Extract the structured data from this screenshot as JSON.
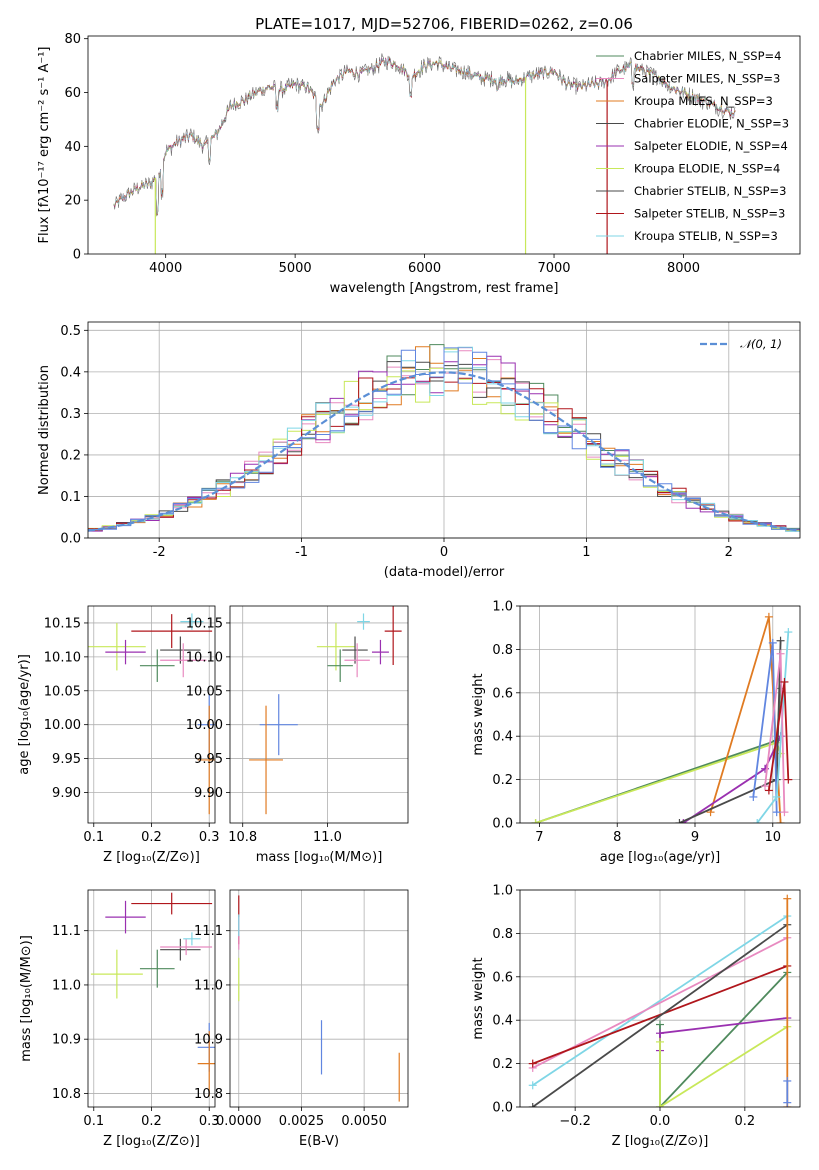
{
  "figure": {
    "title": "PLATE=1017, MJD=52706, FIBERID=0262, z=0.06"
  },
  "colors": {
    "blue": "#6186e0",
    "orange": "#e07b22",
    "green": "#4f8a5d",
    "pink": "#e88ac0",
    "purple": "#9a30b0",
    "yellowgreen": "#c8e85a",
    "darkgray": "#4a4a4a",
    "red": "#b0161c",
    "cyan": "#7fd6e6",
    "spectrum": "#555555",
    "gaussian": "#5b8fd6"
  },
  "chart_data": [
    {
      "id": "spectrum",
      "type": "line",
      "title": "PLATE=1017, MJD=52706, FIBERID=0262, z=0.06",
      "xlabel": "wavelength [Angstrom, rest frame]",
      "ylabel": "Flux [fλ10⁻¹⁷ erg cm⁻² s⁻¹ A⁻¹]",
      "xlim": [
        3400,
        8900
      ],
      "ylim": [
        0,
        81
      ],
      "xticks": [
        4000,
        5000,
        6000,
        7000,
        8000
      ],
      "yticks": [
        0,
        20,
        40,
        60,
        80
      ],
      "grid": false,
      "legend_position": "top-right",
      "legend": [
        "Chabrier MILES, N_SSP=4",
        "Salpeter MILES, N_SSP=3",
        "Kroupa MILES, N_SSP=3",
        "Chabrier ELODIE, N_SSP=3",
        "Salpeter ELODIE, N_SSP=4",
        "Kroupa ELODIE, N_SSP=4",
        "Chabrier STELIB, N_SSP=3",
        "Salpeter STELIB, N_SSP=3",
        "Kroupa STELIB, N_SSP=3"
      ],
      "legend_colors": [
        "green",
        "pink",
        "orange",
        "darkgray",
        "purple",
        "yellowgreen",
        "darkgray",
        "red",
        "cyan"
      ],
      "x": [
        3600,
        3700,
        3800,
        3880,
        3950,
        4000,
        4100,
        4200,
        4300,
        4400,
        4500,
        4600,
        4700,
        4800,
        4900,
        5000,
        5100,
        5200,
        5300,
        5400,
        5500,
        5600,
        5700,
        5800,
        5900,
        6000,
        6100,
        6200,
        6300,
        6400,
        6500,
        6600,
        6700,
        6800,
        6900,
        7000,
        7100,
        7200,
        7300,
        7400,
        7500,
        7600,
        7700,
        7800,
        7900,
        8000,
        8100,
        8200,
        8300,
        8400
      ],
      "y": [
        18,
        22,
        25,
        26,
        30,
        38,
        42,
        44,
        40,
        45,
        55,
        57,
        60,
        62,
        61,
        63,
        62,
        55,
        64,
        68,
        67,
        69,
        72,
        70,
        66,
        70,
        71,
        69,
        68,
        66,
        65,
        65,
        64,
        66,
        67,
        68,
        63,
        62,
        63,
        64,
        68,
        70,
        68,
        66,
        62,
        60,
        58,
        56,
        54,
        52
      ],
      "spikes_to_zero": [
        3920,
        6780,
        7410
      ]
    },
    {
      "id": "residuals",
      "type": "line",
      "xlabel": "(data-model)/error",
      "ylabel": "Normed distribution",
      "xlim": [
        -2.5,
        2.5
      ],
      "ylim": [
        0,
        0.52
      ],
      "xticks": [
        -2,
        -1,
        0,
        1,
        2
      ],
      "yticks": [
        0.0,
        0.1,
        0.2,
        0.3,
        0.4,
        0.5
      ],
      "grid": true,
      "legend_position": "top-right",
      "legend": [
        "𝒩(0, 1)"
      ]
    },
    {
      "id": "age-vs-Z",
      "type": "scatter",
      "xlabel": "Z [log₁₀(Z/Z⊙)]",
      "ylabel": "age  [log₁₀(age/yr)]",
      "xlim": [
        0.09,
        0.31
      ],
      "ylim": [
        9.855,
        10.175
      ],
      "xticks": [
        0.1,
        0.2,
        0.3
      ],
      "yticks": [
        9.9,
        9.95,
        10.0,
        10.05,
        10.1,
        10.15
      ],
      "grid": true,
      "points": [
        {
          "color": "yellowgreen",
          "x": 0.14,
          "y": 10.115,
          "xerr": 0.05,
          "yerr": 0.035
        },
        {
          "color": "purple",
          "x": 0.155,
          "y": 10.107,
          "xerr": 0.035,
          "yerr": 0.018
        },
        {
          "color": "green",
          "x": 0.21,
          "y": 10.087,
          "xerr": 0.03,
          "yerr": 0.024
        },
        {
          "color": "darkgray",
          "x": 0.25,
          "y": 10.11,
          "xerr": 0.035,
          "yerr": 0.02
        },
        {
          "color": "pink",
          "x": 0.255,
          "y": 10.095,
          "xerr": 0.04,
          "yerr": 0.025
        },
        {
          "color": "red",
          "x": 0.235,
          "y": 10.138,
          "xerr": 0.07,
          "yerr": 0.025
        },
        {
          "color": "cyan",
          "x": 0.27,
          "y": 10.152,
          "xerr": 0.02,
          "yerr": 0.012
        },
        {
          "color": "blue",
          "x": 0.3,
          "y": 10.0,
          "xerr": 0.02,
          "yerr": 0.045
        },
        {
          "color": "orange",
          "x": 0.3,
          "y": 9.948,
          "xerr": 0.02,
          "yerr": 0.08
        }
      ]
    },
    {
      "id": "age-vs-mass",
      "type": "scatter",
      "xlabel": "mass [log₁₀(M/M⊙)]",
      "xlim": [
        10.77,
        11.19
      ],
      "ylim": [
        9.855,
        10.175
      ],
      "xticks": [
        10.8,
        11.0
      ],
      "yticks": [
        9.9,
        9.95,
        10.0,
        10.05,
        10.1,
        10.15
      ],
      "grid": true,
      "points": [
        {
          "color": "yellowgreen",
          "x": 11.02,
          "y": 10.115,
          "xerr": 0.045,
          "yerr": 0.035
        },
        {
          "color": "purple",
          "x": 11.125,
          "y": 10.107,
          "xerr": 0.02,
          "yerr": 0.018
        },
        {
          "color": "green",
          "x": 11.03,
          "y": 10.087,
          "xerr": 0.03,
          "yerr": 0.024
        },
        {
          "color": "darkgray",
          "x": 11.065,
          "y": 10.11,
          "xerr": 0.03,
          "yerr": 0.02
        },
        {
          "color": "pink",
          "x": 11.07,
          "y": 10.095,
          "xerr": 0.03,
          "yerr": 0.025
        },
        {
          "color": "red",
          "x": 11.155,
          "y": 10.138,
          "xerr": 0.02,
          "yerr": 0.05
        },
        {
          "color": "cyan",
          "x": 11.085,
          "y": 10.152,
          "xerr": 0.015,
          "yerr": 0.012
        },
        {
          "color": "blue",
          "x": 10.885,
          "y": 10.0,
          "xerr": 0.045,
          "yerr": 0.045
        },
        {
          "color": "orange",
          "x": 10.855,
          "y": 9.948,
          "xerr": 0.04,
          "yerr": 0.08
        }
      ]
    },
    {
      "id": "weight-vs-age",
      "type": "line",
      "xlabel": "age  [log₁₀(age/yr)]",
      "ylabel": "mass weight",
      "xlim": [
        6.75,
        10.35
      ],
      "ylim": [
        0,
        1.0
      ],
      "xticks": [
        7,
        8,
        9,
        10
      ],
      "yticks": [
        0.0,
        0.2,
        0.4,
        0.6,
        0.8,
        1.0
      ],
      "grid": true,
      "series": [
        {
          "color": "green",
          "x": [
            6.95,
            10.05,
            10.1
          ],
          "y": [
            0.0,
            0.38,
            0.62
          ]
        },
        {
          "color": "yellowgreen",
          "x": [
            6.95,
            10.05,
            10.1
          ],
          "y": [
            0.0,
            0.37,
            0.32
          ]
        },
        {
          "color": "orange",
          "x": [
            9.2,
            9.95,
            10.1
          ],
          "y": [
            0.05,
            0.95,
            0.0
          ]
        },
        {
          "color": "purple",
          "x": [
            8.85,
            9.9,
            10.1
          ],
          "y": [
            0.0,
            0.25,
            0.4
          ]
        },
        {
          "color": "darkgray",
          "x": [
            8.8,
            10.05,
            10.1
          ],
          "y": [
            0.0,
            0.2,
            0.84
          ]
        },
        {
          "color": "blue",
          "x": [
            9.75,
            10.0,
            10.05
          ],
          "y": [
            0.12,
            0.83,
            0.05
          ]
        },
        {
          "color": "cyan",
          "x": [
            9.8,
            10.05,
            10.2
          ],
          "y": [
            0.0,
            0.12,
            0.88
          ]
        },
        {
          "color": "pink",
          "x": [
            9.9,
            10.1,
            10.15
          ],
          "y": [
            0.17,
            0.78,
            0.05
          ]
        },
        {
          "color": "red",
          "x": [
            9.95,
            10.15,
            10.2
          ],
          "y": [
            0.15,
            0.65,
            0.2
          ]
        }
      ]
    },
    {
      "id": "mass-vs-Z",
      "type": "scatter",
      "xlabel": "Z [log₁₀(Z/Z⊙)]",
      "ylabel": "mass [log₁₀(M/M⊙)]",
      "xlim": [
        0.09,
        0.31
      ],
      "ylim": [
        10.775,
        11.175
      ],
      "xticks": [
        0.1,
        0.2,
        0.3
      ],
      "yticks": [
        10.8,
        10.9,
        11.0,
        11.1
      ],
      "grid": true,
      "points": [
        {
          "color": "yellowgreen",
          "x": 0.14,
          "y": 11.02,
          "xerr": 0.045,
          "yerr": 0.045
        },
        {
          "color": "purple",
          "x": 0.155,
          "y": 11.125,
          "xerr": 0.035,
          "yerr": 0.03
        },
        {
          "color": "green",
          "x": 0.21,
          "y": 11.03,
          "xerr": 0.03,
          "yerr": 0.035
        },
        {
          "color": "darkgray",
          "x": 0.25,
          "y": 11.065,
          "xerr": 0.035,
          "yerr": 0.02
        },
        {
          "color": "pink",
          "x": 0.26,
          "y": 11.07,
          "xerr": 0.045,
          "yerr": 0.015
        },
        {
          "color": "red",
          "x": 0.235,
          "y": 11.15,
          "xerr": 0.07,
          "yerr": 0.02
        },
        {
          "color": "cyan",
          "x": 0.27,
          "y": 11.085,
          "xerr": 0.015,
          "yerr": 0.012
        },
        {
          "color": "blue",
          "x": 0.3,
          "y": 10.885,
          "xerr": 0.02,
          "yerr": 0.045
        },
        {
          "color": "orange",
          "x": 0.3,
          "y": 10.855,
          "xerr": 0.02,
          "yerr": 0.06
        }
      ]
    },
    {
      "id": "mass-vs-ebv",
      "type": "scatter",
      "xlabel": "E(B-V)",
      "xlim": [
        -0.00035,
        0.00675
      ],
      "ylim": [
        10.775,
        11.175
      ],
      "xticks": [
        0.0,
        0.0025,
        0.005
      ],
      "xticklabels": [
        "0.0000",
        "0.0025",
        "0.0050"
      ],
      "yticks": [
        10.8,
        10.9,
        11.0,
        11.1
      ],
      "grid": true,
      "points": [
        {
          "color": "red",
          "x": 0.0,
          "y": 11.12,
          "xerr": 0,
          "yerr": 0.045
        },
        {
          "color": "pink",
          "x": 0.0,
          "y": 11.095,
          "xerr": 0,
          "yerr": 0.03
        },
        {
          "color": "cyan",
          "x": 0.0,
          "y": 11.11,
          "xerr": 0,
          "yerr": 0.02
        },
        {
          "color": "yellowgreen",
          "x": 0.0,
          "y": 11.01,
          "xerr": 0,
          "yerr": 0.04
        },
        {
          "color": "blue",
          "x": 0.0033,
          "y": 10.885,
          "xerr": 0,
          "yerr": 0.05
        },
        {
          "color": "orange",
          "x": 0.0064,
          "y": 10.83,
          "xerr": 0,
          "yerr": 0.045
        }
      ]
    },
    {
      "id": "weight-vs-Z",
      "type": "line",
      "xlabel": "Z [log₁₀(Z/Z⊙)]",
      "ylabel": "mass weight",
      "xlim": [
        -0.33,
        0.33
      ],
      "ylim": [
        0,
        1.0
      ],
      "xticks": [
        -0.2,
        0.0,
        0.2
      ],
      "xticklabels": [
        "−0.2",
        "0.0",
        "0.2"
      ],
      "yticks": [
        0.0,
        0.2,
        0.4,
        0.6,
        0.8,
        1.0
      ],
      "grid": true,
      "series": [
        {
          "color": "cyan",
          "x": [
            -0.3,
            0.3
          ],
          "y": [
            0.1,
            0.88
          ]
        },
        {
          "color": "pink",
          "x": [
            -0.3,
            0.3
          ],
          "y": [
            0.18,
            0.78
          ]
        },
        {
          "color": "red",
          "x": [
            -0.3,
            0.3
          ],
          "y": [
            0.2,
            0.65
          ]
        },
        {
          "color": "darkgray",
          "x": [
            -0.3,
            0.3
          ],
          "y": [
            0.0,
            0.84
          ]
        },
        {
          "color": "green",
          "x": [
            0.0,
            0.0,
            0.3
          ],
          "y": [
            0.38,
            0.0,
            0.62
          ]
        },
        {
          "color": "purple",
          "x": [
            0.0,
            0.0,
            0.3
          ],
          "y": [
            0.26,
            0.34,
            0.41
          ]
        },
        {
          "color": "yellowgreen",
          "x": [
            0.0,
            0.0,
            0.3
          ],
          "y": [
            0.3,
            0.0,
            0.37
          ]
        },
        {
          "color": "orange",
          "x": [
            0.3,
            0.3
          ],
          "y": [
            0.96,
            0.0
          ]
        },
        {
          "color": "blue",
          "x": [
            0.3,
            0.3
          ],
          "y": [
            0.12,
            0.02
          ]
        }
      ]
    }
  ]
}
